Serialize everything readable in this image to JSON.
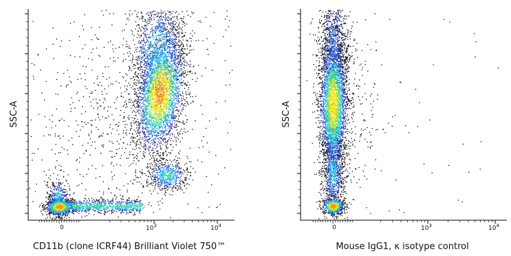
{
  "chart_data": [
    {
      "type": "scatter",
      "subtype": "flow-cytometry-density-dot-plot",
      "title": "",
      "xlabel": "CD11b (clone ICRF44) Brilliant Violet 750™",
      "ylabel": "SSC-A",
      "x_scale": "biexponential",
      "y_scale": "linear",
      "x_ticks": [
        {
          "value": 0,
          "label": "0"
        },
        {
          "value": 1000,
          "base": "10",
          "exp": "3"
        },
        {
          "value": 10000,
          "base": "10",
          "exp": "4"
        }
      ],
      "grid": false,
      "legend": "none",
      "colormap": [
        "#000000",
        "#1a237e",
        "#1e5bd8",
        "#17b3e6",
        "#2fd39a",
        "#a8e23b",
        "#f2e61b",
        "#f79a1a",
        "#e3261c"
      ],
      "populations": [
        {
          "name": "",
          "x_center": 0,
          "y_fraction": 0.06,
          "density": "high"
        },
        {
          "name": "",
          "x_range": [
            50,
            900
          ],
          "y_fraction": 0.07,
          "density": "medium"
        },
        {
          "name": "",
          "x_center": 1500,
          "y_fraction": 0.61,
          "density": "high"
        },
        {
          "name": "",
          "x_center": 1700,
          "y_fraction": 0.23,
          "density": "medium"
        }
      ]
    },
    {
      "type": "scatter",
      "subtype": "flow-cytometry-density-dot-plot",
      "title": "",
      "xlabel": "Mouse IgG1, κ isotype control",
      "ylabel": "SSC-A",
      "x_scale": "biexponential",
      "y_scale": "linear",
      "x_ticks": [
        {
          "value": 0,
          "label": "0"
        },
        {
          "value": 1000,
          "base": "10",
          "exp": "3"
        },
        {
          "value": 10000,
          "base": "10",
          "exp": "4"
        }
      ],
      "grid": false,
      "legend": "none",
      "colormap": [
        "#000000",
        "#1a237e",
        "#1e5bd8",
        "#17b3e6",
        "#2fd39a",
        "#a8e23b",
        "#f2e61b",
        "#f79a1a",
        "#e3261c"
      ],
      "populations": [
        {
          "name": "",
          "x_center": 0,
          "y_fraction": 0.06,
          "density": "high"
        },
        {
          "name": "",
          "x_center": 0,
          "y_fraction": 0.55,
          "density": "high"
        }
      ]
    }
  ]
}
